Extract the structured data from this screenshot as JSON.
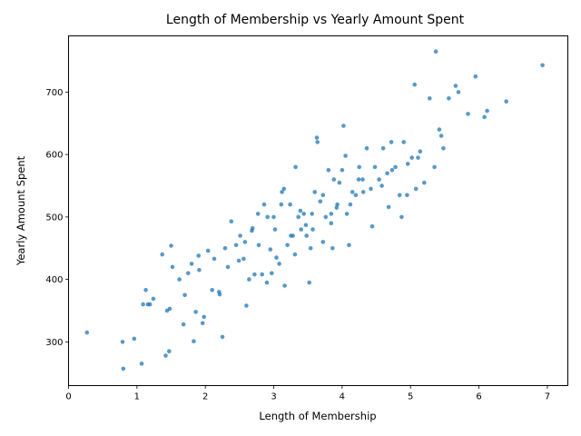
{
  "chart_data": {
    "type": "scatter",
    "title": "Length of Membership vs Yearly Amount Spent",
    "xlabel": "Length of Membership",
    "ylabel": "Yearly Amount Spent",
    "xlim": [
      0,
      7.3
    ],
    "ylim": [
      230,
      790
    ],
    "xticks": [
      0,
      1,
      2,
      3,
      4,
      5,
      6,
      7
    ],
    "yticks": [
      300,
      400,
      500,
      600,
      700
    ],
    "grid": false,
    "legend": "none",
    "point_color": "#1f77b4",
    "x": [
      0.27,
      0.79,
      0.8,
      0.96,
      1.07,
      1.09,
      1.13,
      1.16,
      1.19,
      1.24,
      1.37,
      1.42,
      1.44,
      1.47,
      1.48,
      1.5,
      1.52,
      1.62,
      1.68,
      1.7,
      1.75,
      1.8,
      1.83,
      1.86,
      1.9,
      1.96,
      2.04,
      2.1,
      2.13,
      2.2,
      2.25,
      2.29,
      2.33,
      2.38,
      2.45,
      2.51,
      2.56,
      2.6,
      2.64,
      2.68,
      2.72,
      2.78,
      2.83,
      2.86,
      2.9,
      2.95,
      3.0,
      3.04,
      3.08,
      3.12,
      3.16,
      3.2,
      3.24,
      3.28,
      3.32,
      3.36,
      3.4,
      3.44,
      3.48,
      3.52,
      3.56,
      3.6,
      3.64,
      3.68,
      3.72,
      3.76,
      3.8,
      3.84,
      3.88,
      3.92,
      3.96,
      4.0,
      4.05,
      4.1,
      4.15,
      4.2,
      4.25,
      4.3,
      4.36,
      4.42,
      4.48,
      4.54,
      4.6,
      4.66,
      4.72,
      4.78,
      4.84,
      4.9,
      4.96,
      5.02,
      5.08,
      5.14,
      5.2,
      5.28,
      5.35,
      5.42,
      5.48,
      5.56,
      5.66,
      5.7,
      5.84,
      5.95,
      6.08,
      6.12,
      6.4,
      6.93,
      5.37,
      5.06,
      4.02,
      3.63,
      2.69,
      2.91,
      3.11,
      3.47,
      3.93,
      4.44,
      4.68,
      4.95,
      3.25,
      3.57,
      2.49,
      2.21,
      1.98,
      3.02,
      3.86,
      4.31,
      4.87,
      5.45,
      3.39,
      2.97,
      3.72,
      4.12,
      4.58,
      3.15,
      2.58,
      1.91,
      3.54,
      4.07,
      2.77,
      3.31,
      3.84,
      4.24,
      4.73,
      5.11
    ],
    "y": [
      315,
      300,
      257,
      305,
      265,
      360,
      383,
      360,
      360,
      369,
      440,
      278,
      350,
      285,
      353,
      454,
      420,
      400,
      328,
      375,
      410,
      425,
      301,
      348,
      438,
      330,
      446,
      383,
      433,
      380,
      308,
      450,
      420,
      493,
      455,
      470,
      433,
      358,
      400,
      478,
      408,
      455,
      408,
      520,
      395,
      448,
      500,
      435,
      425,
      540,
      390,
      455,
      520,
      470,
      580,
      500,
      480,
      505,
      470,
      395,
      505,
      540,
      620,
      525,
      460,
      500,
      575,
      490,
      560,
      515,
      555,
      575,
      598,
      455,
      540,
      535,
      580,
      560,
      610,
      545,
      580,
      560,
      610,
      570,
      620,
      580,
      535,
      620,
      585,
      595,
      545,
      605,
      555,
      690,
      580,
      640,
      610,
      690,
      710,
      700,
      665,
      725,
      660,
      670,
      685,
      743,
      765,
      712,
      646,
      627,
      482,
      500,
      520,
      487,
      520,
      485,
      516,
      535,
      470,
      480,
      430,
      376,
      340,
      480,
      450,
      540,
      500,
      630,
      510,
      410,
      535,
      520,
      550,
      545,
      460,
      415,
      450,
      505,
      505,
      440,
      505,
      560,
      575,
      595
    ]
  }
}
